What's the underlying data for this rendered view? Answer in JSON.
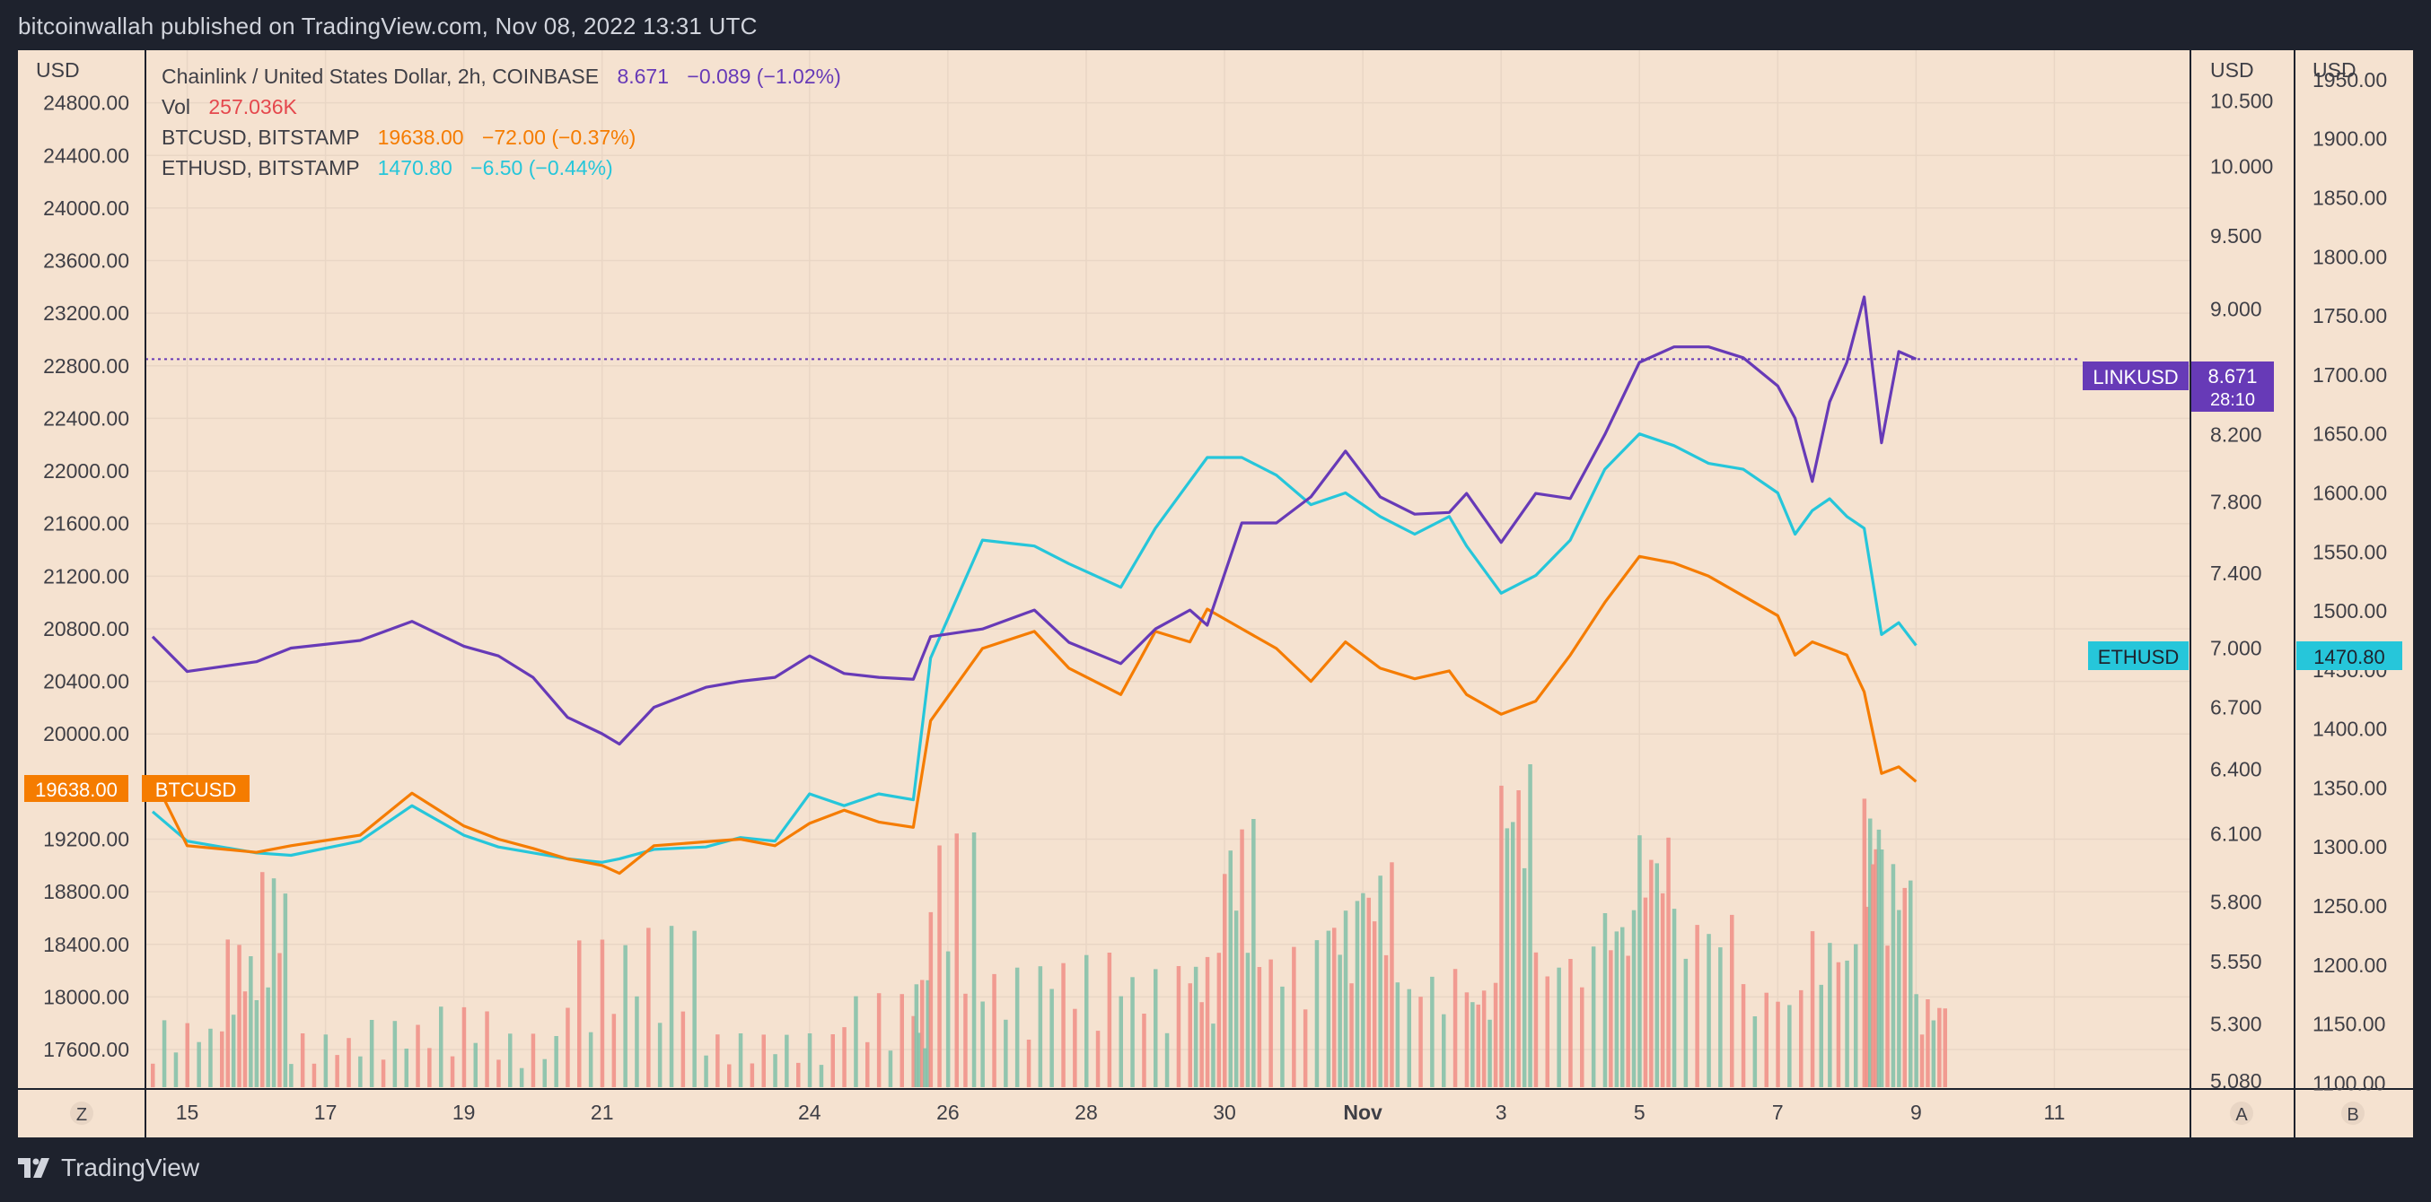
{
  "header": {
    "attribution": "bitcoinwallah published on TradingView.com, Nov 08, 2022 13:31 UTC"
  },
  "footer": {
    "brand": "TradingView",
    "logo_icon": "tradingview-logo-icon"
  },
  "colors": {
    "link": "#673ab7",
    "btc": "#f57c00",
    "eth": "#26c6da",
    "vol_up": "#80c0a8",
    "vol_down": "#f08e86",
    "background": "#f5e2d0",
    "frame": "#1e222d"
  },
  "legend": {
    "link": {
      "label": "Chainlink / United States Dollar, 2h, COINBASE",
      "value": "8.671",
      "change": "−0.089 (−1.02%)"
    },
    "vol": {
      "label": "Vol",
      "value": "257.036K"
    },
    "btc": {
      "label": "BTCUSD, BITSTAMP",
      "value": "19638.00",
      "change": "−72.00 (−0.37%)"
    },
    "eth": {
      "label": "ETHUSD, BITSTAMP",
      "value": "1470.80",
      "change": "−6.50 (−0.44%)"
    }
  },
  "axes": {
    "left_unit": "USD",
    "right_unit_a": "USD",
    "right_unit_b": "USD",
    "left_ticks": [
      "24800.00",
      "24400.00",
      "24000.00",
      "23600.00",
      "23200.00",
      "22800.00",
      "22400.00",
      "22000.00",
      "21600.00",
      "21200.00",
      "20800.00",
      "20400.00",
      "20000.00",
      "19200.00",
      "18800.00",
      "18400.00",
      "18000.00",
      "17600.00"
    ],
    "link_ticks": [
      "10.500",
      "10.000",
      "9.500",
      "9.000",
      "8.200",
      "7.800",
      "7.400",
      "7.000",
      "6.700",
      "6.400",
      "6.100",
      "5.800",
      "5.550",
      "5.300",
      "5.080"
    ],
    "eth_ticks": [
      "1950.00",
      "1900.00",
      "1850.00",
      "1800.00",
      "1750.00",
      "1700.00",
      "1650.00",
      "1600.00",
      "1550.00",
      "1500.00",
      "1450.00",
      "1400.00",
      "1350.00",
      "1300.00",
      "1250.00",
      "1200.00",
      "1150.00",
      "1100.00"
    ],
    "x_ticks": [
      "15",
      "17",
      "19",
      "21",
      "24",
      "26",
      "28",
      "30",
      "Nov",
      "3",
      "5",
      "7",
      "9",
      "11"
    ],
    "scale_buttons": {
      "left": "Z",
      "right_a": "A",
      "right_b": "B"
    }
  },
  "price_labels": {
    "btc_value": "19638.00",
    "btc_name": "BTCUSD",
    "link_name": "LINKUSD",
    "link_value": "8.671",
    "link_countdown": "28:10",
    "eth_name": "ETHUSD",
    "eth_value": "1470.80"
  },
  "chart_data": {
    "type": "line",
    "x_range": [
      "Oct 14",
      "Nov 12"
    ],
    "x_ticks": [
      "15",
      "17",
      "19",
      "21",
      "24",
      "26",
      "28",
      "30",
      "Nov",
      "3",
      "5",
      "7",
      "9",
      "11"
    ],
    "series": [
      {
        "name": "Chainlink / United States Dollar, 2h, COINBASE",
        "axis": "link",
        "last": 8.671,
        "points": [
          [
            "Oct 14 12:00",
            7.06
          ],
          [
            "Oct 15 00:00",
            6.88
          ],
          [
            "Oct 16 00:00",
            6.93
          ],
          [
            "Oct 16 12:00",
            7.0
          ],
          [
            "Oct 17 12:00",
            7.04
          ],
          [
            "Oct 18 06:00",
            7.14
          ],
          [
            "Oct 19 00:00",
            7.01
          ],
          [
            "Oct 19 12:00",
            6.96
          ],
          [
            "Oct 20 00:00",
            6.85
          ],
          [
            "Oct 20 12:00",
            6.65
          ],
          [
            "Oct 21 00:00",
            6.57
          ],
          [
            "Oct 21 06:00",
            6.52
          ],
          [
            "Oct 21 18:00",
            6.7
          ],
          [
            "Oct 22 12:00",
            6.8
          ],
          [
            "Oct 23 00:00",
            6.83
          ],
          [
            "Oct 23 12:00",
            6.85
          ],
          [
            "Oct 24 00:00",
            6.96
          ],
          [
            "Oct 24 12:00",
            6.87
          ],
          [
            "Oct 25 00:00",
            6.85
          ],
          [
            "Oct 25 12:00",
            6.84
          ],
          [
            "Oct 25 18:00",
            7.06
          ],
          [
            "Oct 26 12:00",
            7.1
          ],
          [
            "Oct 27 06:00",
            7.2
          ],
          [
            "Oct 27 18:00",
            7.03
          ],
          [
            "Oct 28 12:00",
            6.92
          ],
          [
            "Oct 29 00:00",
            7.1
          ],
          [
            "Oct 29 12:00",
            7.2
          ],
          [
            "Oct 29 18:00",
            7.12
          ],
          [
            "Oct 30 06:00",
            7.68
          ],
          [
            "Oct 30 18:00",
            7.68
          ],
          [
            "Oct 31 06:00",
            7.83
          ],
          [
            "Oct 31 18:00",
            8.1
          ],
          [
            "Nov 01 06:00",
            7.83
          ],
          [
            "Nov 01 18:00",
            7.73
          ],
          [
            "Nov 02 06:00",
            7.74
          ],
          [
            "Nov 02 12:00",
            7.85
          ],
          [
            "Nov 03 00:00",
            7.57
          ],
          [
            "Nov 03 12:00",
            7.85
          ],
          [
            "Nov 04 00:00",
            7.82
          ],
          [
            "Nov 04 12:00",
            8.2
          ],
          [
            "Nov 05 00:00",
            8.65
          ],
          [
            "Nov 05 12:00",
            8.75
          ],
          [
            "Nov 06 00:00",
            8.75
          ],
          [
            "Nov 06 12:00",
            8.68
          ],
          [
            "Nov 07 00:00",
            8.5
          ],
          [
            "Nov 07 06:00",
            8.3
          ],
          [
            "Nov 07 12:00",
            7.92
          ],
          [
            "Nov 07 18:00",
            8.4
          ],
          [
            "Nov 08 00:00",
            8.65
          ],
          [
            "Nov 08 06:00",
            9.08
          ],
          [
            "Nov 08 12:00",
            8.15
          ],
          [
            "Nov 08 18:00",
            8.72
          ],
          [
            "Nov 09 00:00",
            8.671
          ]
        ]
      },
      {
        "name": "BTCUSD, BITSTAMP",
        "axis": "usd",
        "last": 19638.0,
        "points": [
          [
            "Oct 14 12:00",
            19680
          ],
          [
            "Oct 15 00:00",
            19150
          ],
          [
            "Oct 16 00:00",
            19100
          ],
          [
            "Oct 16 12:00",
            19150
          ],
          [
            "Oct 17 12:00",
            19230
          ],
          [
            "Oct 18 06:00",
            19550
          ],
          [
            "Oct 19 00:00",
            19300
          ],
          [
            "Oct 19 12:00",
            19200
          ],
          [
            "Oct 20 00:00",
            19130
          ],
          [
            "Oct 20 12:00",
            19050
          ],
          [
            "Oct 21 00:00",
            19000
          ],
          [
            "Oct 21 06:00",
            18940
          ],
          [
            "Oct 21 18:00",
            19150
          ],
          [
            "Oct 22 12:00",
            19180
          ],
          [
            "Oct 23 00:00",
            19200
          ],
          [
            "Oct 23 12:00",
            19150
          ],
          [
            "Oct 24 00:00",
            19320
          ],
          [
            "Oct 24 12:00",
            19420
          ],
          [
            "Oct 25 00:00",
            19330
          ],
          [
            "Oct 25 12:00",
            19290
          ],
          [
            "Oct 25 18:00",
            20100
          ],
          [
            "Oct 26 12:00",
            20650
          ],
          [
            "Oct 27 06:00",
            20780
          ],
          [
            "Oct 27 18:00",
            20500
          ],
          [
            "Oct 28 12:00",
            20300
          ],
          [
            "Oct 29 00:00",
            20780
          ],
          [
            "Oct 29 12:00",
            20700
          ],
          [
            "Oct 29 18:00",
            20950
          ],
          [
            "Oct 30 06:00",
            20800
          ],
          [
            "Oct 30 18:00",
            20650
          ],
          [
            "Oct 31 06:00",
            20400
          ],
          [
            "Oct 31 18:00",
            20700
          ],
          [
            "Nov 01 06:00",
            20500
          ],
          [
            "Nov 01 18:00",
            20420
          ],
          [
            "Nov 02 06:00",
            20480
          ],
          [
            "Nov 02 12:00",
            20300
          ],
          [
            "Nov 03 00:00",
            20150
          ],
          [
            "Nov 03 12:00",
            20250
          ],
          [
            "Nov 04 00:00",
            20600
          ],
          [
            "Nov 04 12:00",
            21000
          ],
          [
            "Nov 05 00:00",
            21350
          ],
          [
            "Nov 05 12:00",
            21300
          ],
          [
            "Nov 06 00:00",
            21200
          ],
          [
            "Nov 06 12:00",
            21050
          ],
          [
            "Nov 07 00:00",
            20900
          ],
          [
            "Nov 07 06:00",
            20600
          ],
          [
            "Nov 07 12:00",
            20700
          ],
          [
            "Nov 07 18:00",
            20650
          ],
          [
            "Nov 08 00:00",
            20600
          ],
          [
            "Nov 08 06:00",
            20320
          ],
          [
            "Nov 08 12:00",
            19700
          ],
          [
            "Nov 08 18:00",
            19750
          ],
          [
            "Nov 09 00:00",
            19638
          ]
        ]
      },
      {
        "name": "ETHUSD, BITSTAMP",
        "axis": "eth",
        "last": 1470.8,
        "points": [
          [
            "Oct 14 12:00",
            1330
          ],
          [
            "Oct 15 00:00",
            1305
          ],
          [
            "Oct 16 00:00",
            1295
          ],
          [
            "Oct 16 12:00",
            1293
          ],
          [
            "Oct 17 12:00",
            1305
          ],
          [
            "Oct 18 06:00",
            1335
          ],
          [
            "Oct 19 00:00",
            1310
          ],
          [
            "Oct 19 12:00",
            1300
          ],
          [
            "Oct 20 00:00",
            1295
          ],
          [
            "Oct 20 12:00",
            1290
          ],
          [
            "Oct 21 00:00",
            1287
          ],
          [
            "Oct 21 06:00",
            1290
          ],
          [
            "Oct 21 18:00",
            1298
          ],
          [
            "Oct 22 12:00",
            1300
          ],
          [
            "Oct 23 00:00",
            1308
          ],
          [
            "Oct 23 12:00",
            1305
          ],
          [
            "Oct 24 00:00",
            1345
          ],
          [
            "Oct 24 12:00",
            1335
          ],
          [
            "Oct 25 00:00",
            1345
          ],
          [
            "Oct 25 12:00",
            1340
          ],
          [
            "Oct 25 18:00",
            1460
          ],
          [
            "Oct 26 12:00",
            1560
          ],
          [
            "Oct 27 06:00",
            1555
          ],
          [
            "Oct 27 18:00",
            1540
          ],
          [
            "Oct 28 12:00",
            1520
          ],
          [
            "Oct 29 00:00",
            1570
          ],
          [
            "Oct 29 12:00",
            1610
          ],
          [
            "Oct 29 18:00",
            1630
          ],
          [
            "Oct 30 06:00",
            1630
          ],
          [
            "Oct 30 18:00",
            1615
          ],
          [
            "Oct 31 06:00",
            1590
          ],
          [
            "Oct 31 18:00",
            1600
          ],
          [
            "Nov 01 06:00",
            1580
          ],
          [
            "Nov 01 18:00",
            1565
          ],
          [
            "Nov 02 06:00",
            1580
          ],
          [
            "Nov 02 12:00",
            1555
          ],
          [
            "Nov 03 00:00",
            1515
          ],
          [
            "Nov 03 12:00",
            1530
          ],
          [
            "Nov 04 00:00",
            1560
          ],
          [
            "Nov 04 12:00",
            1620
          ],
          [
            "Nov 05 00:00",
            1650
          ],
          [
            "Nov 05 12:00",
            1640
          ],
          [
            "Nov 06 00:00",
            1625
          ],
          [
            "Nov 06 12:00",
            1620
          ],
          [
            "Nov 07 00:00",
            1600
          ],
          [
            "Nov 07 06:00",
            1565
          ],
          [
            "Nov 07 12:00",
            1585
          ],
          [
            "Nov 07 18:00",
            1595
          ],
          [
            "Nov 08 00:00",
            1580
          ],
          [
            "Nov 08 06:00",
            1570
          ],
          [
            "Nov 08 12:00",
            1480
          ],
          [
            "Nov 08 18:00",
            1490
          ],
          [
            "Nov 09 00:00",
            1470.8
          ]
        ]
      },
      {
        "name": "Vol",
        "axis": "volume",
        "last": "257.036K",
        "points": [
          [
            "Oct 14 12:00",
            0.25
          ],
          [
            "Oct 15 12:00",
            0.55
          ],
          [
            "Oct 16 00:00",
            0.8
          ],
          [
            "Oct 16 12:00",
            0.2
          ],
          [
            "Oct 17 12:00",
            0.25
          ],
          [
            "Oct 18 12:00",
            0.3
          ],
          [
            "Oct 19 12:00",
            0.2
          ],
          [
            "Oct 20 12:00",
            0.55
          ],
          [
            "Oct 21 12:00",
            0.6
          ],
          [
            "Oct 22 12:00",
            0.2
          ],
          [
            "Oct 23 12:00",
            0.2
          ],
          [
            "Oct 24 12:00",
            0.35
          ],
          [
            "Oct 25 12:00",
            0.4
          ],
          [
            "Oct 25 18:00",
            0.95
          ],
          [
            "Oct 26 12:00",
            0.45
          ],
          [
            "Oct 27 12:00",
            0.5
          ],
          [
            "Oct 28 12:00",
            0.45
          ],
          [
            "Oct 29 12:00",
            0.5
          ],
          [
            "Oct 30 00:00",
            1.0
          ],
          [
            "Oct 30 12:00",
            0.55
          ],
          [
            "Oct 31 12:00",
            0.7
          ],
          [
            "Nov 01 00:00",
            0.85
          ],
          [
            "Nov 01 12:00",
            0.45
          ],
          [
            "Nov 02 12:00",
            0.4
          ],
          [
            "Nov 03 00:00",
            1.25
          ],
          [
            "Nov 03 12:00",
            0.55
          ],
          [
            "Nov 04 12:00",
            0.7
          ],
          [
            "Nov 05 00:00",
            1.0
          ],
          [
            "Nov 05 12:00",
            0.7
          ],
          [
            "Nov 06 12:00",
            0.4
          ],
          [
            "Nov 07 12:00",
            0.6
          ],
          [
            "Nov 08 06:00",
            1.1
          ],
          [
            "Nov 08 12:00",
            0.9
          ],
          [
            "Nov 09 00:00",
            0.35
          ]
        ]
      }
    ],
    "axis_ranges": {
      "usd": [
        17300,
        25200
      ],
      "link": [
        5.05,
        10.9
      ],
      "eth": [
        1095,
        1975
      ]
    },
    "link_scale_ticks": [
      10.5,
      10.0,
      9.5,
      9.0,
      8.2,
      7.8,
      7.4,
      7.0,
      6.7,
      6.4,
      6.1,
      5.8,
      5.55,
      5.3,
      5.08
    ],
    "current_price_line": {
      "series": "LINKUSD",
      "value": 8.671,
      "style": "dotted"
    },
    "grid": true
  }
}
